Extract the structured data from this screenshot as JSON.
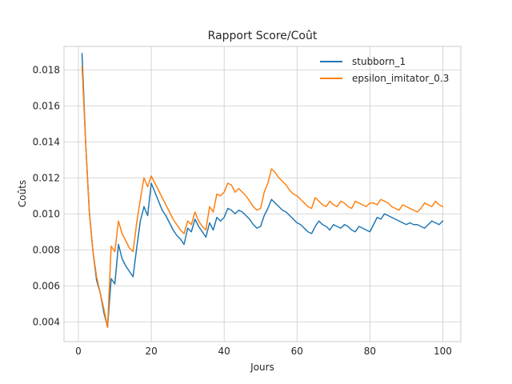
{
  "chart_data": {
    "type": "line",
    "title": "Rapport Score/Coût",
    "xlabel": "Jours",
    "ylabel": "Coûts",
    "xlim": [
      -3.95,
      104.95
    ],
    "ylim": [
      0.0029,
      0.0193
    ],
    "xticks": [
      0,
      20,
      40,
      60,
      80,
      100
    ],
    "yticks": [
      0.004,
      0.006,
      0.008,
      0.01,
      0.012,
      0.014,
      0.016,
      0.018
    ],
    "xtick_labels": [
      "0",
      "20",
      "40",
      "60",
      "80",
      "100"
    ],
    "ytick_labels": [
      "0.004",
      "0.006",
      "0.008",
      "0.010",
      "0.012",
      "0.014",
      "0.016",
      "0.018"
    ],
    "grid": true,
    "legend_position": "top-right",
    "x": [
      1,
      2,
      3,
      4,
      5,
      6,
      7,
      8,
      9,
      10,
      11,
      12,
      13,
      14,
      15,
      16,
      17,
      18,
      19,
      20,
      21,
      22,
      23,
      24,
      25,
      26,
      27,
      28,
      29,
      30,
      31,
      32,
      33,
      34,
      35,
      36,
      37,
      38,
      39,
      40,
      41,
      42,
      43,
      44,
      45,
      46,
      47,
      48,
      49,
      50,
      51,
      52,
      53,
      54,
      55,
      56,
      57,
      58,
      59,
      60,
      61,
      62,
      63,
      64,
      65,
      66,
      67,
      68,
      69,
      70,
      71,
      72,
      73,
      74,
      75,
      76,
      77,
      78,
      79,
      80,
      81,
      82,
      83,
      84,
      85,
      86,
      87,
      88,
      89,
      90,
      91,
      92,
      93,
      94,
      95,
      96,
      97,
      98,
      99,
      100
    ],
    "series": [
      {
        "name": "stubborn_1",
        "color": "#1f77b4",
        "values": [
          0.0189,
          0.0139,
          0.0101,
          0.0079,
          0.0063,
          0.0056,
          0.0045,
          0.0037,
          0.0064,
          0.0061,
          0.0083,
          0.0075,
          0.0071,
          0.0068,
          0.0065,
          0.0081,
          0.0096,
          0.0104,
          0.0099,
          0.0117,
          0.0112,
          0.0107,
          0.0102,
          0.0099,
          0.0095,
          0.0091,
          0.0088,
          0.0086,
          0.0083,
          0.0092,
          0.009,
          0.0097,
          0.0093,
          0.009,
          0.0087,
          0.0095,
          0.0091,
          0.0098,
          0.0096,
          0.0098,
          0.0103,
          0.0102,
          0.01,
          0.0102,
          0.0101,
          0.0099,
          0.0097,
          0.0094,
          0.0092,
          0.0093,
          0.0099,
          0.0103,
          0.0108,
          0.0106,
          0.0104,
          0.0102,
          0.0101,
          0.0099,
          0.0097,
          0.0095,
          0.0094,
          0.0092,
          0.009,
          0.0089,
          0.0093,
          0.0096,
          0.0094,
          0.0093,
          0.0091,
          0.0094,
          0.0093,
          0.0092,
          0.0094,
          0.0093,
          0.0091,
          0.009,
          0.0093,
          0.0092,
          0.0091,
          0.009,
          0.0094,
          0.0098,
          0.0097,
          0.01,
          0.0099,
          0.0098,
          0.0097,
          0.0096,
          0.0095,
          0.0094,
          0.0095,
          0.0094,
          0.0094,
          0.0093,
          0.0092,
          0.0094,
          0.0096,
          0.0095,
          0.0094,
          0.0096
        ]
      },
      {
        "name": "epsilon_imitator_0.3",
        "color": "#ff7f0e",
        "values": [
          0.0182,
          0.0139,
          0.0101,
          0.0079,
          0.0065,
          0.0056,
          0.0047,
          0.0037,
          0.0082,
          0.0079,
          0.0096,
          0.0089,
          0.0085,
          0.0081,
          0.0079,
          0.0095,
          0.0108,
          0.012,
          0.0115,
          0.0121,
          0.0117,
          0.0113,
          0.0109,
          0.0105,
          0.0101,
          0.0097,
          0.0094,
          0.0091,
          0.0089,
          0.0096,
          0.0094,
          0.0101,
          0.0096,
          0.0093,
          0.0091,
          0.0104,
          0.0101,
          0.0111,
          0.011,
          0.0112,
          0.0117,
          0.0116,
          0.0112,
          0.0114,
          0.0112,
          0.011,
          0.0107,
          0.0104,
          0.0102,
          0.0103,
          0.0112,
          0.0117,
          0.0125,
          0.0123,
          0.012,
          0.0118,
          0.0116,
          0.0113,
          0.0111,
          0.011,
          0.0108,
          0.0106,
          0.0104,
          0.0103,
          0.0109,
          0.0107,
          0.0105,
          0.0104,
          0.0107,
          0.0105,
          0.0104,
          0.0107,
          0.0106,
          0.0104,
          0.0103,
          0.0107,
          0.0106,
          0.0105,
          0.0104,
          0.0106,
          0.0106,
          0.0105,
          0.0108,
          0.0107,
          0.0106,
          0.0104,
          0.0103,
          0.0102,
          0.0105,
          0.0104,
          0.0103,
          0.0102,
          0.0101,
          0.0103,
          0.0106,
          0.0105,
          0.0104,
          0.0107,
          0.0105,
          0.0104
        ]
      }
    ]
  }
}
